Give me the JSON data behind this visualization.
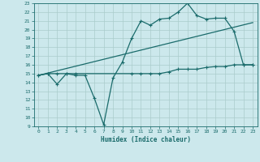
{
  "xlabel": "Humidex (Indice chaleur)",
  "bg_color": "#cce8ec",
  "grid_color": "#aacccc",
  "line_color": "#1a6b6b",
  "xlim": [
    -0.5,
    23.5
  ],
  "ylim": [
    9,
    23
  ],
  "xticks": [
    0,
    1,
    2,
    3,
    4,
    5,
    6,
    7,
    8,
    9,
    10,
    11,
    12,
    13,
    14,
    15,
    16,
    17,
    18,
    19,
    20,
    21,
    22,
    23
  ],
  "yticks": [
    9,
    10,
    11,
    12,
    13,
    14,
    15,
    16,
    17,
    18,
    19,
    20,
    21,
    22,
    23
  ],
  "line1_x": [
    0,
    1,
    2,
    3,
    4,
    5,
    6,
    7,
    8,
    9,
    10,
    11,
    12,
    13,
    14,
    15,
    16,
    17,
    18,
    19,
    20,
    21,
    22,
    23
  ],
  "line1_y": [
    14.8,
    15.0,
    13.8,
    15.0,
    14.8,
    14.8,
    12.2,
    9.2,
    14.5,
    16.3,
    19.0,
    21.0,
    20.5,
    21.2,
    21.3,
    22.0,
    23.0,
    21.6,
    21.2,
    21.3,
    21.3,
    19.8,
    16.0,
    16.0
  ],
  "line2_x": [
    0,
    1,
    2,
    3,
    4,
    10,
    11,
    12,
    13,
    14,
    15,
    16,
    17,
    18,
    19,
    20,
    21,
    22,
    23
  ],
  "line2_y": [
    14.8,
    15.0,
    15.0,
    15.0,
    15.0,
    15.0,
    15.0,
    15.0,
    15.0,
    15.2,
    15.5,
    15.5,
    15.5,
    15.7,
    15.8,
    15.8,
    16.0,
    16.0,
    16.0
  ],
  "line3_x": [
    0,
    23
  ],
  "line3_y": [
    14.8,
    20.8
  ]
}
